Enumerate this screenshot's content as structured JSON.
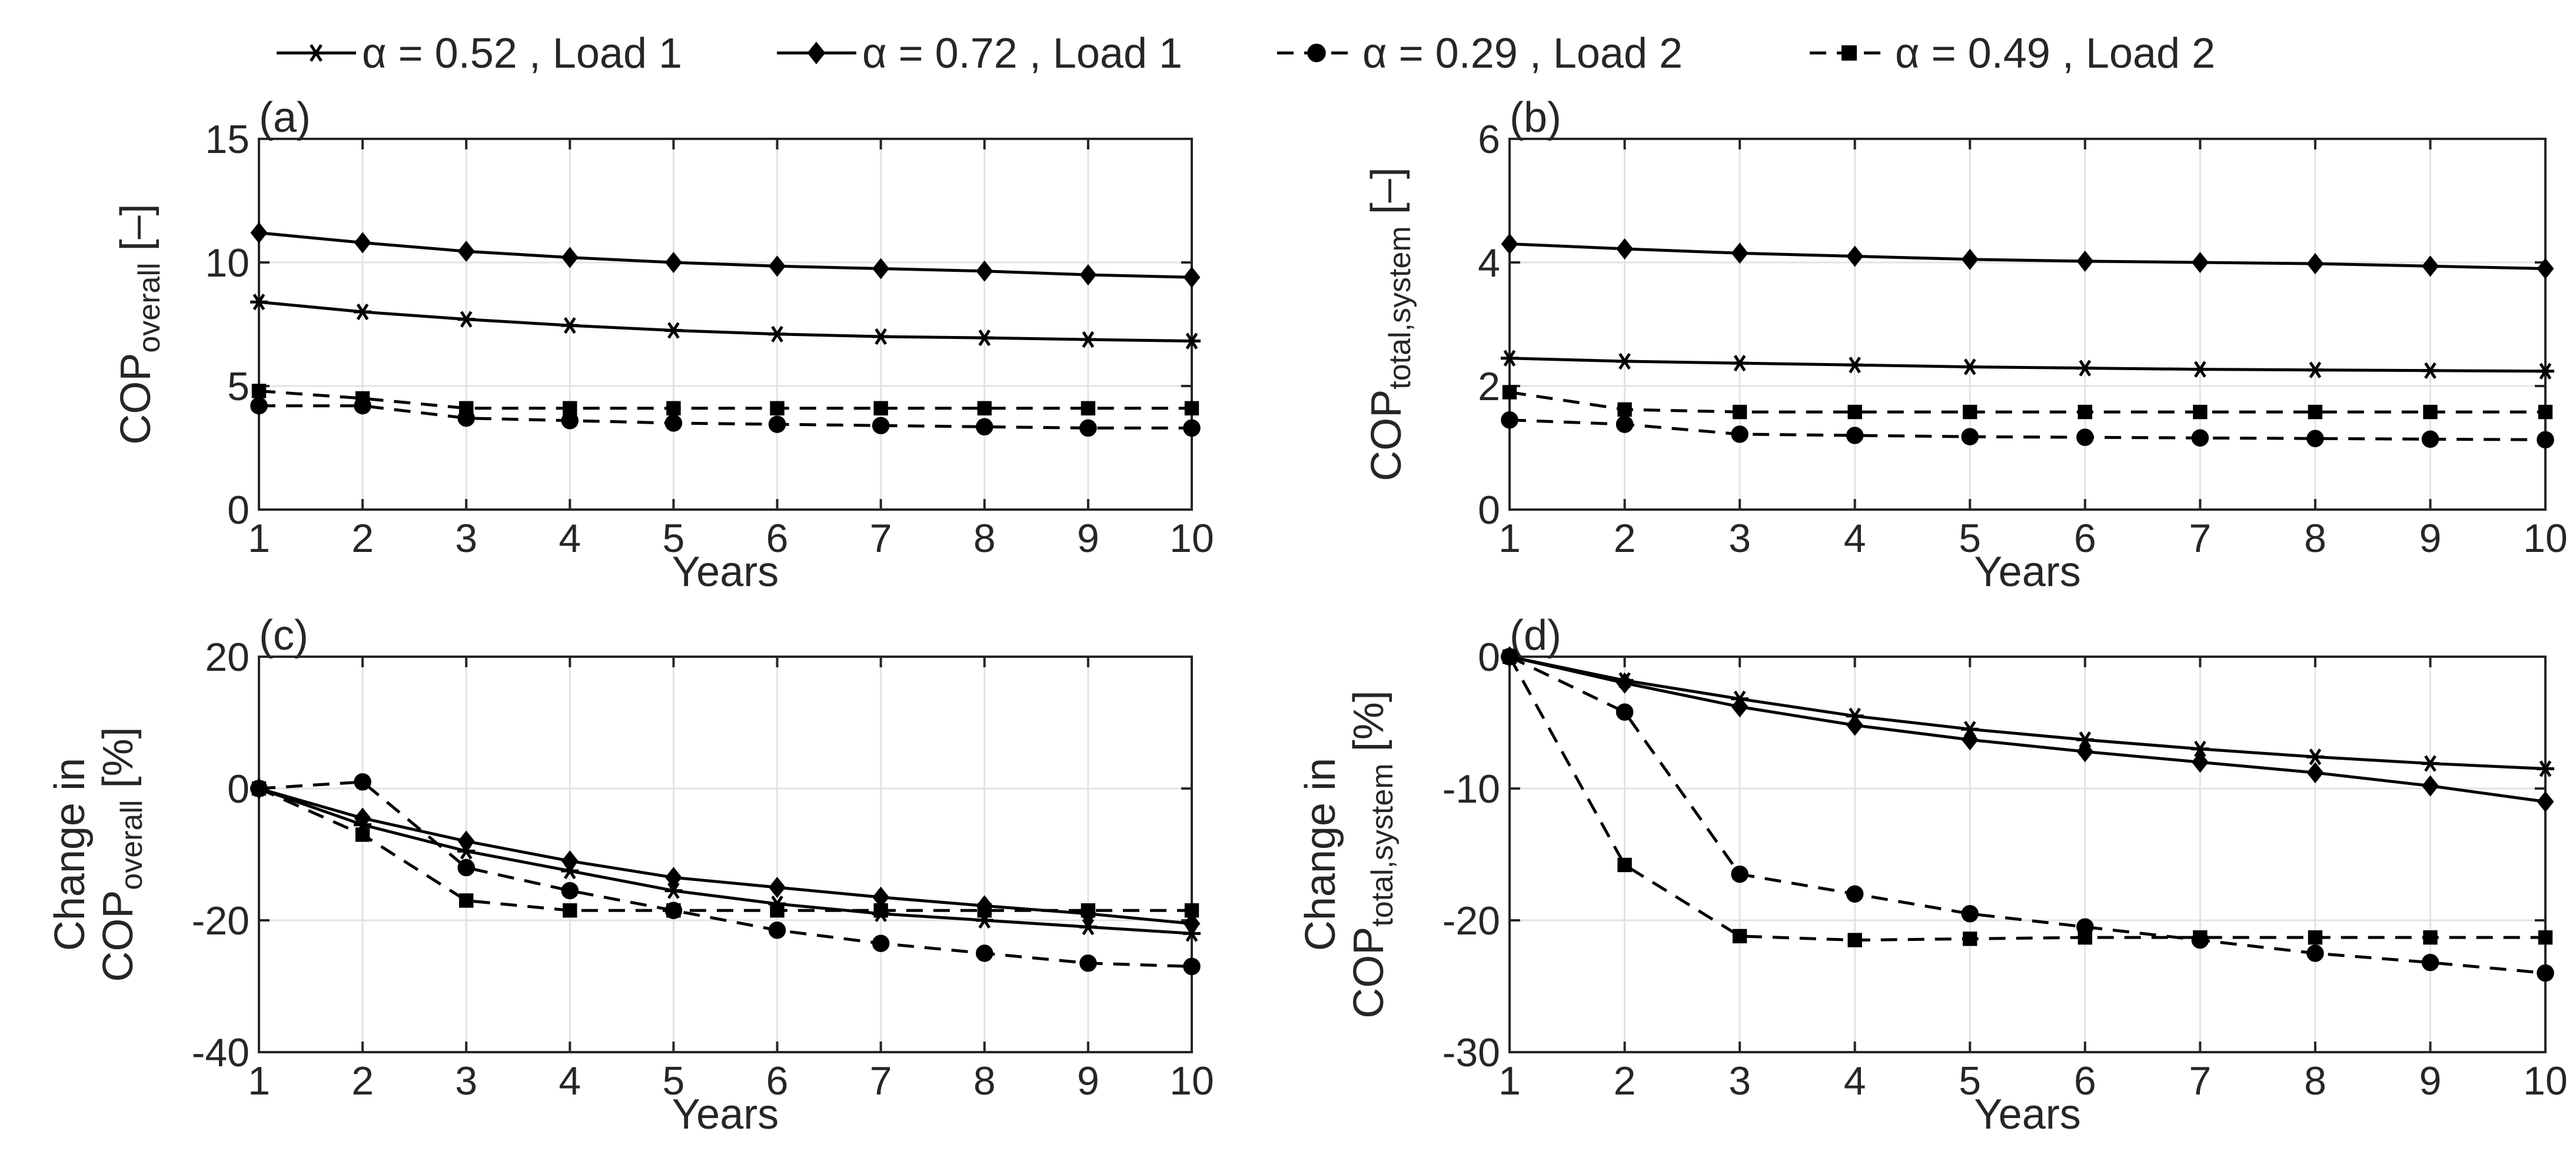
{
  "chart_data": {
    "type": "line",
    "legend": {
      "placement": "top",
      "series_labels": [
        "α = 0.52 , Load 1",
        "α = 0.72 , Load 1",
        "α = 0.29 , Load 2",
        "α = 0.49 , Load 2"
      ]
    },
    "series_styles": [
      {
        "line": "solid",
        "marker": "asterisk"
      },
      {
        "line": "solid",
        "marker": "diamond"
      },
      {
        "line": "dashed",
        "marker": "circle"
      },
      {
        "line": "dashed",
        "marker": "square"
      }
    ],
    "panels": [
      {
        "id": "a",
        "tag": "(a)",
        "xlabel": "Years",
        "ylabel_main": "COP",
        "ylabel_sub": "overall",
        "ylabel_unit": "[–]",
        "ylabel_prefix": "",
        "xlim": [
          1,
          10
        ],
        "ylim": [
          0,
          15
        ],
        "xticks": [
          1,
          2,
          3,
          4,
          5,
          6,
          7,
          8,
          9,
          10
        ],
        "yticks": [
          0,
          5,
          10,
          15
        ],
        "grid": true,
        "x": [
          1,
          2,
          3,
          4,
          5,
          6,
          7,
          8,
          9,
          10
        ],
        "series": [
          {
            "name": "α = 0.52 , Load 1",
            "values": [
              8.4,
              8.0,
              7.7,
              7.45,
              7.25,
              7.1,
              7.0,
              6.95,
              6.88,
              6.82
            ]
          },
          {
            "name": "α = 0.72 , Load 1",
            "values": [
              11.2,
              10.8,
              10.45,
              10.2,
              10.0,
              9.85,
              9.75,
              9.65,
              9.5,
              9.4
            ]
          },
          {
            "name": "α = 0.29 , Load 2",
            "values": [
              4.2,
              4.2,
              3.7,
              3.6,
              3.5,
              3.45,
              3.4,
              3.35,
              3.3,
              3.3
            ]
          },
          {
            "name": "α = 0.49 , Load 2",
            "values": [
              4.8,
              4.5,
              4.1,
              4.1,
              4.1,
              4.1,
              4.1,
              4.1,
              4.1,
              4.1
            ]
          }
        ]
      },
      {
        "id": "b",
        "tag": "(b)",
        "xlabel": "Years",
        "ylabel_main": "COP",
        "ylabel_sub": "total,system",
        "ylabel_unit": "[–]",
        "ylabel_prefix": "",
        "xlim": [
          1,
          10
        ],
        "ylim": [
          0,
          6
        ],
        "xticks": [
          1,
          2,
          3,
          4,
          5,
          6,
          7,
          8,
          9,
          10
        ],
        "yticks": [
          0,
          2,
          4,
          6
        ],
        "grid": true,
        "x": [
          1,
          2,
          3,
          4,
          5,
          6,
          7,
          8,
          9,
          10
        ],
        "series": [
          {
            "name": "α = 0.52 , Load 1",
            "values": [
              2.45,
              2.4,
              2.37,
              2.34,
              2.31,
              2.29,
              2.27,
              2.26,
              2.25,
              2.24
            ]
          },
          {
            "name": "α = 0.72 , Load 1",
            "values": [
              4.3,
              4.22,
              4.15,
              4.1,
              4.05,
              4.02,
              4.0,
              3.98,
              3.94,
              3.9
            ]
          },
          {
            "name": "α = 0.29 , Load 2",
            "values": [
              1.45,
              1.38,
              1.22,
              1.2,
              1.18,
              1.17,
              1.16,
              1.15,
              1.14,
              1.13
            ]
          },
          {
            "name": "α = 0.49 , Load 2",
            "values": [
              1.9,
              1.62,
              1.58,
              1.58,
              1.58,
              1.58,
              1.58,
              1.58,
              1.58,
              1.58
            ]
          }
        ]
      },
      {
        "id": "c",
        "tag": "(c)",
        "xlabel": "Years",
        "ylabel_main": "COP",
        "ylabel_sub": "overall",
        "ylabel_unit": "[%]",
        "ylabel_prefix": "Change in",
        "xlim": [
          1,
          10
        ],
        "ylim": [
          -40,
          20
        ],
        "xticks": [
          1,
          2,
          3,
          4,
          5,
          6,
          7,
          8,
          9,
          10
        ],
        "yticks": [
          -40,
          -20,
          0,
          20
        ],
        "grid": true,
        "x": [
          1,
          2,
          3,
          4,
          5,
          6,
          7,
          8,
          9,
          10
        ],
        "series": [
          {
            "name": "α = 0.52 , Load 1",
            "values": [
              0,
              -5.5,
              -9.5,
              -12.5,
              -15.5,
              -17.5,
              -19,
              -20,
              -21,
              -22
            ]
          },
          {
            "name": "α = 0.72 , Load 1",
            "values": [
              0,
              -4.5,
              -8,
              -11,
              -13.5,
              -15,
              -16.5,
              -17.8,
              -19,
              -20.5
            ]
          },
          {
            "name": "α = 0.29 , Load 2",
            "values": [
              0,
              1,
              -12,
              -15.5,
              -18.5,
              -21.5,
              -23.5,
              -25,
              -26.5,
              -27
            ]
          },
          {
            "name": "α = 0.49 , Load 2",
            "values": [
              0,
              -7,
              -17,
              -18.5,
              -18.5,
              -18.5,
              -18.5,
              -18.5,
              -18.5,
              -18.5
            ]
          }
        ]
      },
      {
        "id": "d",
        "tag": "(d)",
        "xlabel": "Years",
        "ylabel_main": "COP",
        "ylabel_sub": "total,system",
        "ylabel_unit": "[%]",
        "ylabel_prefix": "Change in",
        "xlim": [
          1,
          10
        ],
        "ylim": [
          -30,
          0
        ],
        "xticks": [
          1,
          2,
          3,
          4,
          5,
          6,
          7,
          8,
          9,
          10
        ],
        "yticks": [
          -30,
          -20,
          -10,
          0
        ],
        "grid": true,
        "x": [
          1,
          2,
          3,
          4,
          5,
          6,
          7,
          8,
          9,
          10
        ],
        "series": [
          {
            "name": "α = 0.52 , Load 1",
            "values": [
              0,
              -1.8,
              -3.2,
              -4.5,
              -5.5,
              -6.3,
              -7,
              -7.6,
              -8.1,
              -8.5
            ]
          },
          {
            "name": "α = 0.72 , Load 1",
            "values": [
              0,
              -2,
              -3.8,
              -5.2,
              -6.3,
              -7.2,
              -8,
              -8.8,
              -9.8,
              -11
            ]
          },
          {
            "name": "α = 0.29 , Load 2",
            "values": [
              0,
              -4.2,
              -16.5,
              -18,
              -19.5,
              -20.5,
              -21.5,
              -22.5,
              -23.2,
              -24
            ]
          },
          {
            "name": "α = 0.49 , Load 2",
            "values": [
              0,
              -15.8,
              -21.2,
              -21.5,
              -21.4,
              -21.3,
              -21.3,
              -21.3,
              -21.3,
              -21.3
            ]
          }
        ]
      }
    ]
  }
}
